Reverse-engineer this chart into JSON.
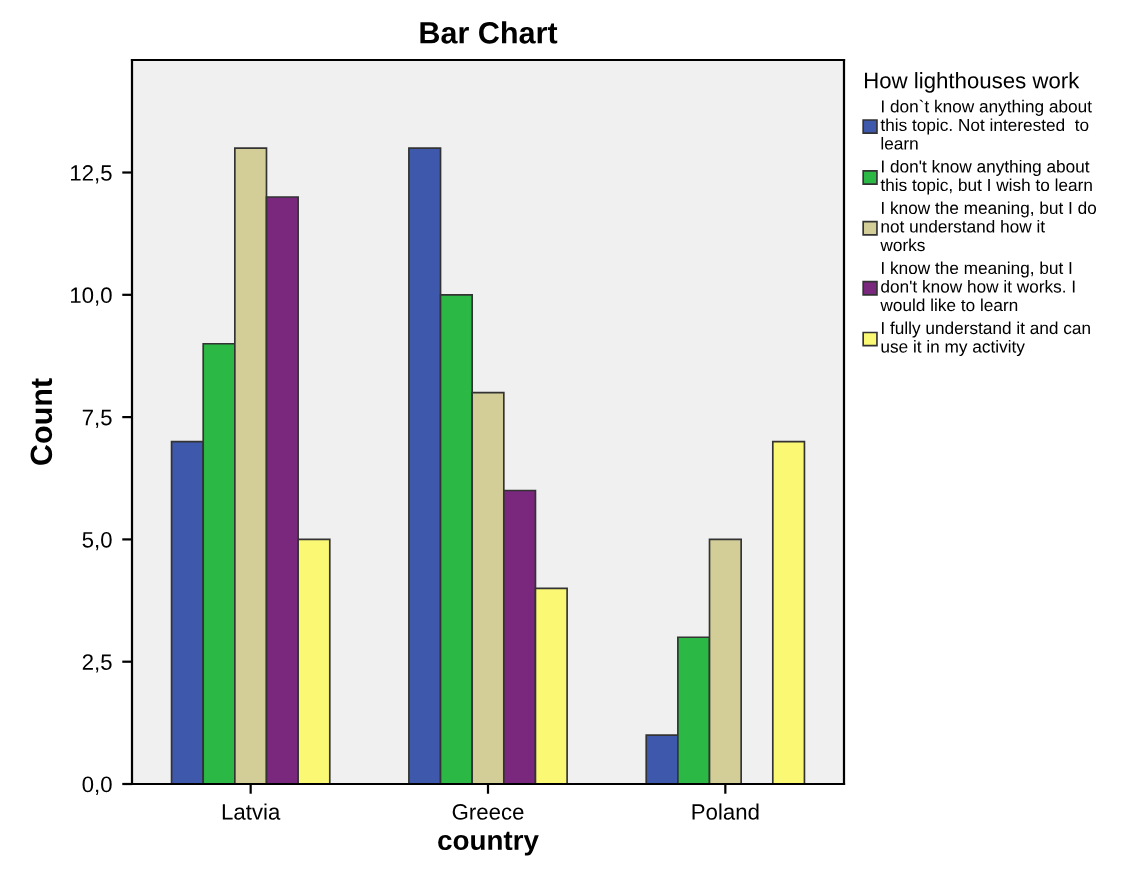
{
  "chart_data": {
    "type": "bar",
    "title": "Bar Chart",
    "xlabel": "country",
    "ylabel": "Count",
    "legend_title": "How lighthouses work",
    "categories": [
      "Latvia",
      "Greece",
      "Poland"
    ],
    "series": [
      {
        "name": "I don`t know anything about\nthis topic. Not interested  to\nlearn",
        "color": "#3e58ac",
        "values": [
          7,
          13,
          1
        ]
      },
      {
        "name": "I don't know anything about\nthis topic, but I wish to learn",
        "color": "#2bb845",
        "values": [
          9,
          10,
          3
        ]
      },
      {
        "name": "I know the meaning, but I do\nnot understand how it\nworks",
        "color": "#d3ce97",
        "values": [
          13,
          8,
          5
        ]
      },
      {
        "name": "I know the meaning, but I\ndon't know how it works. I\nwould like to learn",
        "color": "#79287e",
        "values": [
          12,
          6,
          null
        ]
      },
      {
        "name": "I fully understand it and can\nuse it in my activity",
        "color": "#fbf873",
        "values": [
          5,
          4,
          7
        ]
      }
    ],
    "ylim": [
      0,
      14.8
    ],
    "yticks": [
      {
        "value": 0,
        "label": "0,0"
      },
      {
        "value": 2.5,
        "label": "2,5"
      },
      {
        "value": 5,
        "label": "5,0"
      },
      {
        "value": 7.5,
        "label": "7,5"
      },
      {
        "value": 10,
        "label": "10,0"
      },
      {
        "value": 12.5,
        "label": "12,5"
      }
    ],
    "grid": false,
    "legend": "right"
  }
}
